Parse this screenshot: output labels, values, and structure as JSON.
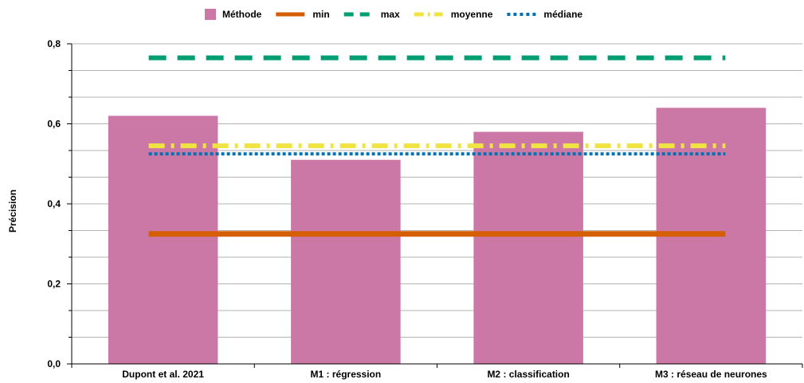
{
  "chart_data": {
    "type": "bar",
    "categories": [
      "Dupont et al. 2021",
      "M1 : régression",
      "M2 : classification",
      "M3 : réseau de neurones"
    ],
    "series": [
      {
        "name": "Méthode",
        "type": "bar",
        "color": "#cc78a6",
        "values": [
          0.62,
          0.51,
          0.58,
          0.64
        ]
      }
    ],
    "reference_lines": [
      {
        "name": "min",
        "value": 0.325,
        "color": "#d55e00",
        "style": "solid"
      },
      {
        "name": "max",
        "value": 0.765,
        "color": "#009e73",
        "style": "dashed"
      },
      {
        "name": "moyenne",
        "value": 0.545,
        "color": "#f0e442",
        "style": "dash-dot"
      },
      {
        "name": "médiane",
        "value": 0.525,
        "color": "#0072b2",
        "style": "dotted"
      }
    ],
    "legend_order": [
      "Méthode",
      "min",
      "max",
      "moyenne",
      "médiane"
    ],
    "ylabel": "Précision",
    "xlabel": "",
    "ylim": [
      0,
      0.8
    ],
    "yticks": [
      "0,0",
      "0,2",
      "0,4",
      "0,6",
      "0,8"
    ],
    "grid": true,
    "legend_position": "top-center"
  }
}
